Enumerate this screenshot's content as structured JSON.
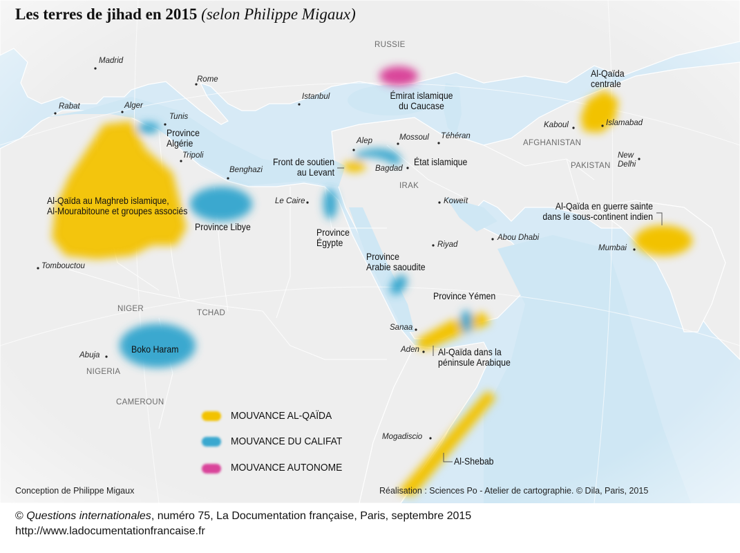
{
  "title": {
    "main": "Les terres de jihad en 2015",
    "sub": "(selon Philippe Migaux)"
  },
  "colors": {
    "alqaida": "#f2c200",
    "califat": "#3aa8cf",
    "autonome": "#d9449a",
    "sea": "#cfe7f4",
    "land": "#eeeeee"
  },
  "zones": {
    "emirat_caucase": "Émirat islamique\ndu Caucase",
    "alqaida_centrale": "Al-Qaïda\ncentrale",
    "province_algerie": "Province\nAlgérie",
    "front_levant": "Front de soutien\nau Levant",
    "etat_islamique": "État islamique",
    "aqmi": "Al-Qaïda au Maghreb islamique,\nAl-Mourabitoune et groupes associés",
    "province_libye": "Province Libye",
    "province_egypte": "Province\nÉgypte",
    "alqaida_indien": "Al-Qaïda en guerre sainte\ndans le sous-continent indien",
    "province_arabie": "Province\nArabie saoudite",
    "province_yemen": "Province Yémen",
    "boko_haram": "Boko Haram",
    "aqpa": "Al-Qaïda dans la\npéninsule Arabique",
    "shebab": "Al-Shebab"
  },
  "cities": [
    "Madrid",
    "Rome",
    "Istanbul",
    "Rabat",
    "Alger",
    "Tunis",
    "Tripoli",
    "Benghazi",
    "Alep",
    "Mossoul",
    "Téhéran",
    "Bagdad",
    "Kaboul",
    "Islamabad",
    "New\nDelhi",
    "Le Caire",
    "Koweït",
    "Riyad",
    "Abou Dhabi",
    "Mumbai",
    "Tombouctou",
    "Sanaa",
    "Aden",
    "Abuja",
    "Mogadiscio"
  ],
  "countries": {
    "russie": "RUSSIE",
    "afghanistan": "AFGHANISTAN",
    "pakistan": "PAKISTAN",
    "irak": "IRAK",
    "niger": "NIGER",
    "tchad": "TCHAD",
    "nigeria": "NIGERIA",
    "cameroun": "CAMEROUN"
  },
  "legend": [
    {
      "label": "MOUVANCE AL-QAÏDA",
      "color": "#f2c200"
    },
    {
      "label": "MOUVANCE DU CALIFAT",
      "color": "#3aa8cf"
    },
    {
      "label": "MOUVANCE AUTONOME",
      "color": "#d9449a"
    }
  ],
  "credits": {
    "conception": "Conception de Philippe Migaux",
    "realisation": "Réalisation : Sciences Po - Atelier de cartographie. © Dila, Paris, 2015"
  },
  "footer": {
    "copyright": "©",
    "publication": "Questions internationales",
    "rest": ", numéro 75, La Documentation française, Paris, septembre 2015",
    "url": "http://www.ladocumentationfrancaise.fr"
  }
}
